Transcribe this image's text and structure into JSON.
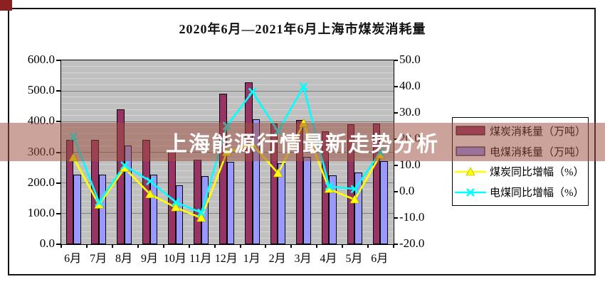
{
  "window": {
    "corner_icon": "red-square"
  },
  "banner": {
    "text": "上海能源行情最新走势分析"
  },
  "chart_data": {
    "type": "combo-bar-line",
    "title": "2020年6月—2021年6月上海市煤炭消耗量",
    "categories": [
      "6月",
      "7月",
      "8月",
      "9月",
      "10月",
      "11月",
      "12月",
      "1月",
      "2月",
      "3月",
      "4月",
      "5月",
      "6月"
    ],
    "bar_series": [
      {
        "name": "煤炭消耗量（万吨）",
        "color": "#993366",
        "axis": "left",
        "values": [
          340,
          340,
          441,
          341,
          303,
          276,
          491,
          528,
          394,
          405,
          369,
          391,
          394
        ]
      },
      {
        "name": "电煤消耗量（万吨）",
        "color": "#9999ff",
        "axis": "left",
        "values": [
          228,
          226,
          321,
          228,
          192,
          223,
          268,
          407,
          264,
          284,
          224,
          235,
          271
        ]
      }
    ],
    "line_series": [
      {
        "name": "煤炭同比增幅（%）",
        "color": "#ffff00",
        "marker": "triangle",
        "axis": "right",
        "values": [
          13,
          -5,
          9,
          -1,
          -6,
          -10,
          15,
          18,
          7,
          26,
          1,
          -3,
          14
        ]
      },
      {
        "name": "电煤同比增幅（%）",
        "color": "#00ffff",
        "marker": "x",
        "axis": "right",
        "values": [
          21,
          -4,
          10,
          4,
          -4,
          -8,
          25,
          38,
          23,
          40,
          2,
          1,
          15
        ]
      }
    ],
    "left_axis": {
      "min": 0,
      "max": 600,
      "step": 100,
      "tick_labels": [
        "600.0",
        "500.0",
        "400.0",
        "300.0",
        "200.0",
        "100.0",
        "0.0"
      ]
    },
    "right_axis": {
      "min": -20,
      "max": 50,
      "step": 10,
      "tick_labels": [
        "50.0",
        "40.0",
        "30.0",
        "20.0",
        "10.0",
        "0.0",
        "-10.0",
        "-20.0"
      ]
    },
    "grid": {
      "minor_step": 20,
      "major_step": 100,
      "plot_background": "#c0c0c0"
    },
    "legend_position": "right"
  }
}
